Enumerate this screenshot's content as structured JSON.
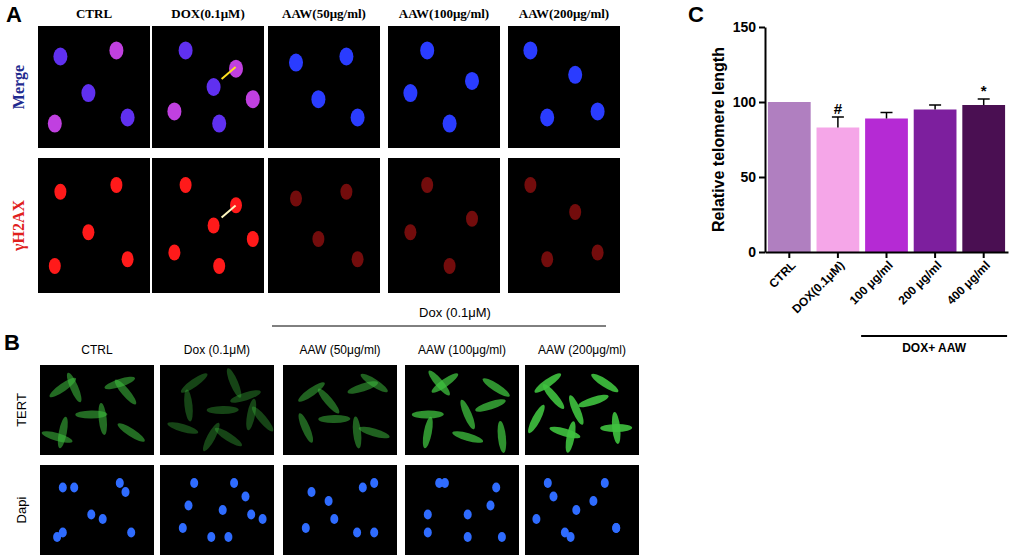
{
  "chart_data": {
    "type": "bar",
    "y_label": "Relative telomere length",
    "categories": [
      "CTRL",
      "DOX(0.1μM)",
      "100 μg/ml",
      "200 μg/ml",
      "400 μg/ml"
    ],
    "values": [
      100,
      83,
      89,
      95,
      98
    ],
    "errors": [
      null,
      7,
      4,
      3,
      4
    ],
    "significance": [
      null,
      "#",
      null,
      null,
      "*"
    ],
    "colors": [
      "#b07fc0",
      "#f5a6e8",
      "#b52ad4",
      "#7d1f9e",
      "#4a0f52"
    ],
    "group": {
      "label": "DOX+ AAW",
      "categories": [
        "100 μg/ml",
        "200 μg/ml",
        "400 μg/ml"
      ]
    },
    "ylim": [
      0,
      150
    ],
    "yticks": [
      0,
      50,
      100,
      150
    ],
    "grid": false
  },
  "figure": {
    "panel_labels": [
      "A",
      "B",
      "C"
    ],
    "panel_a": {
      "columns": [
        "CTRL",
        "DOX(0.1μM)",
        "AAW(50μg/ml)",
        "AAW(100μg/ml)",
        "AAW(200μg/ml)"
      ],
      "rows": [
        "Merge",
        "γH2AX"
      ],
      "treatment_label": "Dox (0.1μM)"
    },
    "panel_b": {
      "columns": [
        "CTRL",
        "Dox (0.1μM)",
        "AAW (50μg/ml)",
        "AAW (100μg/ml)",
        "AAW (200μg/ml)"
      ],
      "rows": [
        "TERT",
        "Dapi"
      ]
    }
  }
}
